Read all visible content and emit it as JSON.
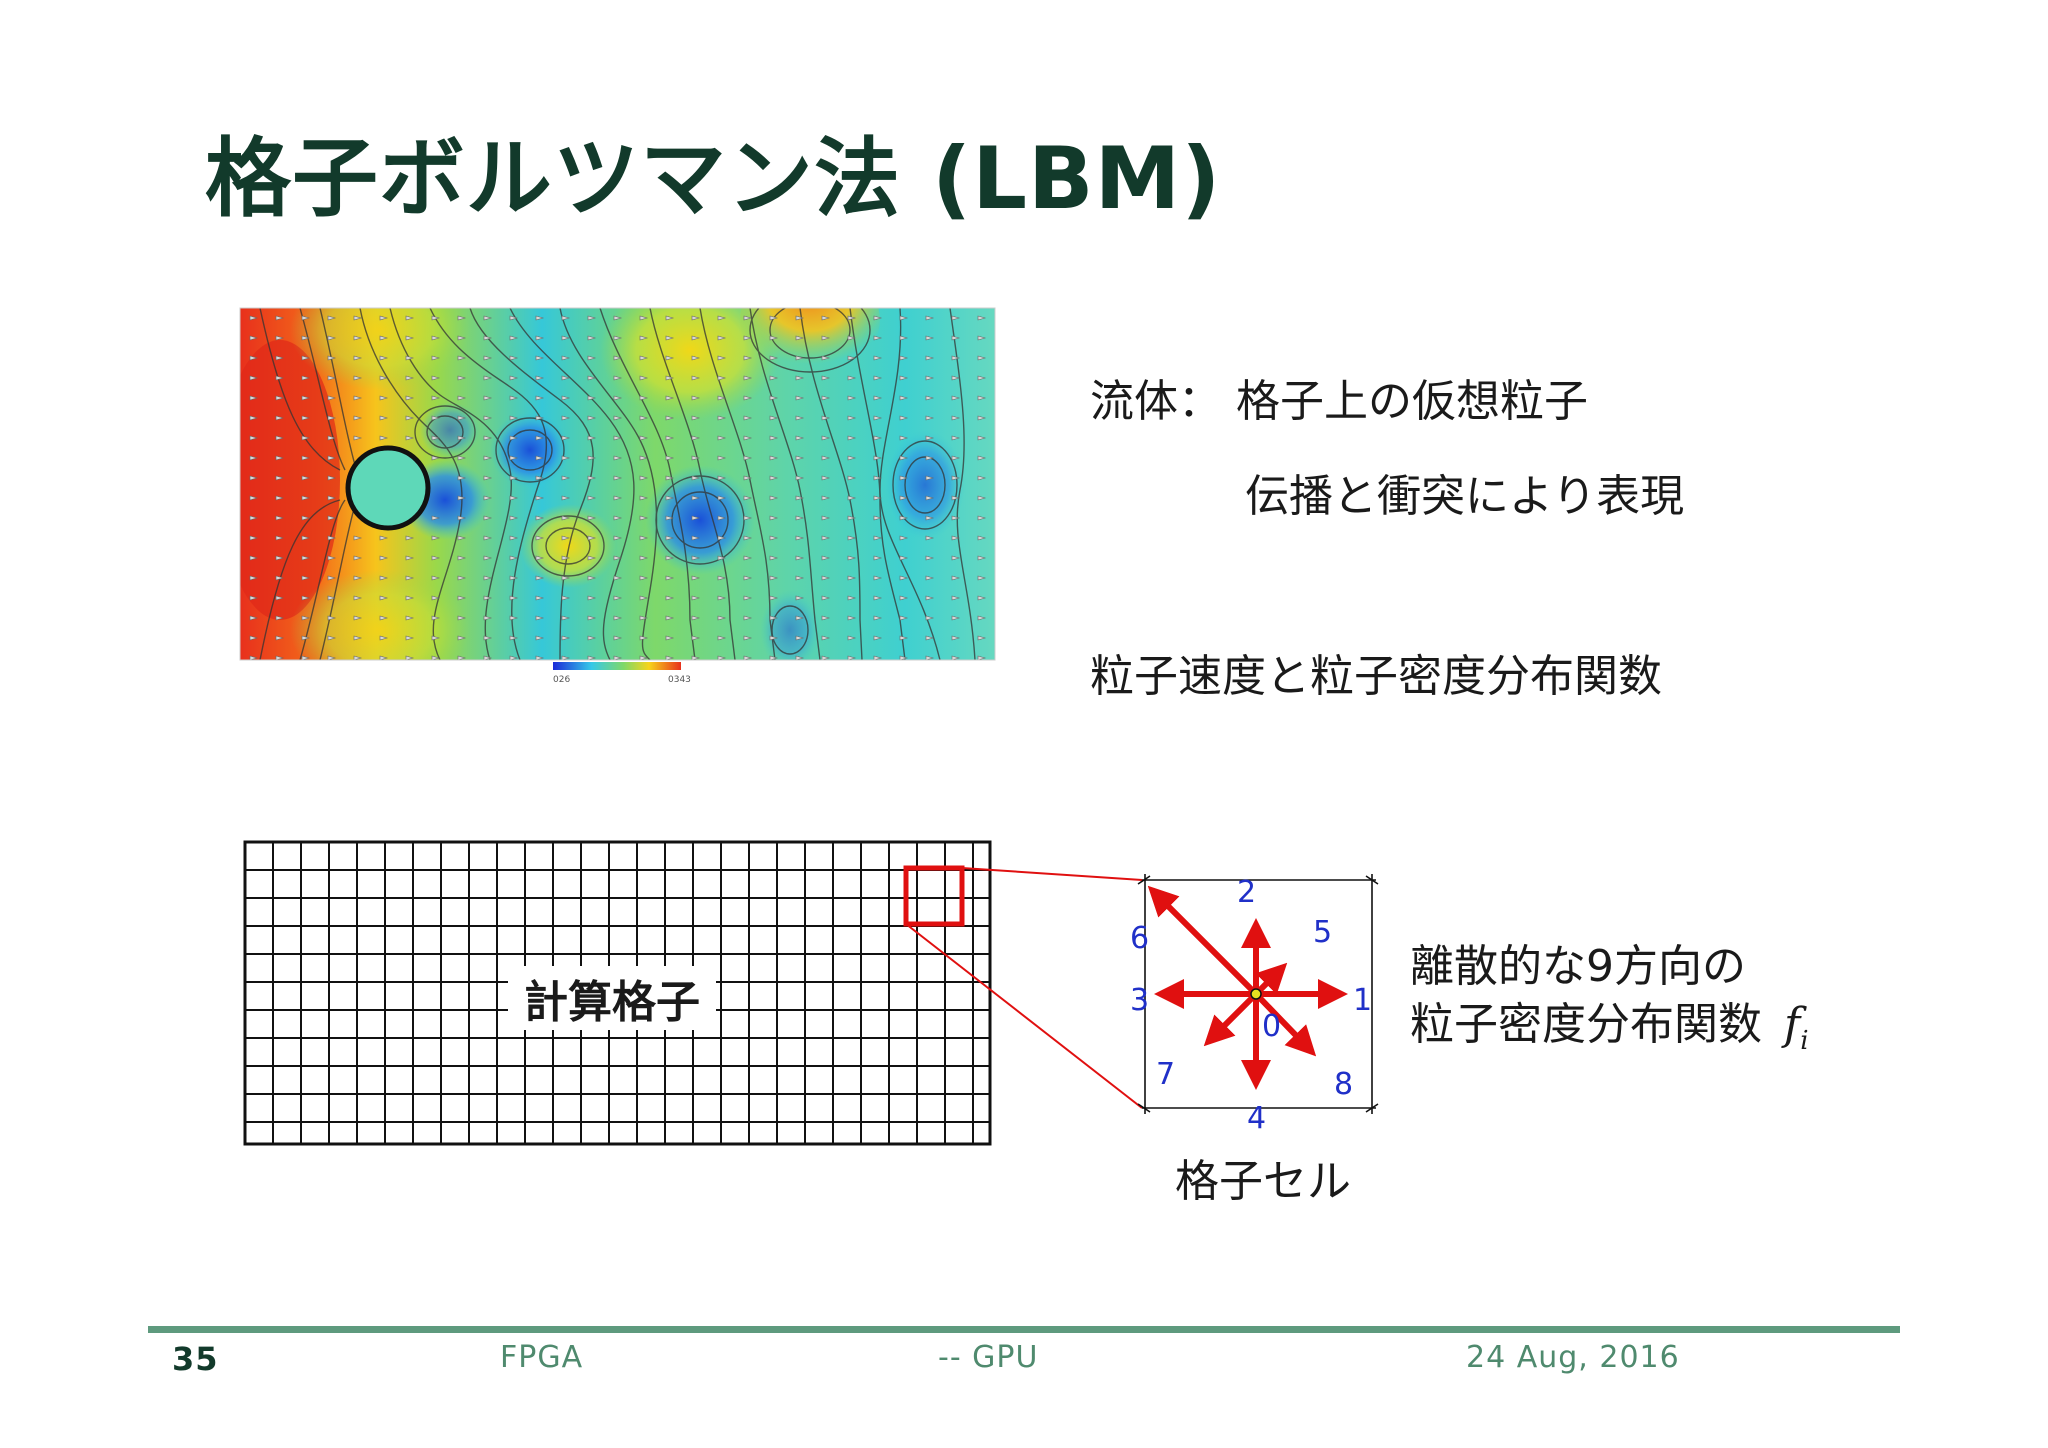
{
  "title": "格子ボルツマン法 (LBM)",
  "fluid": {
    "line1": "流体： 格子上の仮想粒子",
    "line2": "伝播と衝突により表現",
    "line3": "粒子速度と粒子密度分布関数"
  },
  "colorbar": {
    "min_label": "026",
    "max_label": "0343"
  },
  "grid": {
    "label": "計算格子"
  },
  "cell": {
    "caption": "格子セル",
    "direction_labels": [
      "0",
      "1",
      "2",
      "3",
      "4",
      "5",
      "6",
      "7",
      "8"
    ],
    "desc_line1": "離散的な9方向の",
    "desc_line2": "粒子密度分布関数",
    "symbol": "f",
    "symbol_sub": "i"
  },
  "footer": {
    "page": "35",
    "left": "FPGA",
    "center": "-- GPU",
    "date": "24  Aug, 2016"
  },
  "colors": {
    "title": "#123a2b",
    "footer_rule": "#5e9a7e",
    "arrow": "#e01010",
    "direction_label": "#2030c8",
    "highlight": "#e01010"
  }
}
